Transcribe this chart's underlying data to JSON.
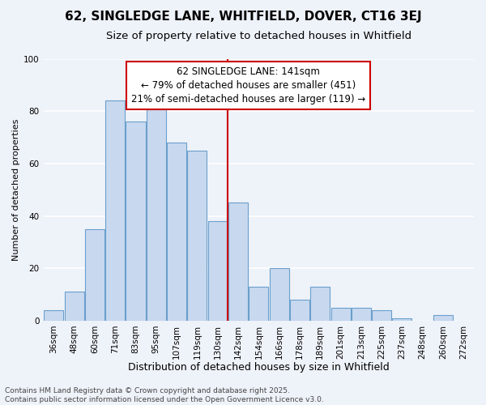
{
  "title": "62, SINGLEDGE LANE, WHITFIELD, DOVER, CT16 3EJ",
  "subtitle": "Size of property relative to detached houses in Whitfield",
  "xlabel": "Distribution of detached houses by size in Whitfield",
  "ylabel": "Number of detached properties",
  "bin_labels": [
    "36sqm",
    "48sqm",
    "60sqm",
    "71sqm",
    "83sqm",
    "95sqm",
    "107sqm",
    "119sqm",
    "130sqm",
    "142sqm",
    "154sqm",
    "166sqm",
    "178sqm",
    "189sqm",
    "201sqm",
    "213sqm",
    "225sqm",
    "237sqm",
    "248sqm",
    "260sqm",
    "272sqm"
  ],
  "bar_heights": [
    4,
    11,
    35,
    84,
    76,
    83,
    68,
    65,
    38,
    45,
    13,
    20,
    8,
    13,
    5,
    5,
    4,
    1,
    0,
    2,
    0
  ],
  "bar_color": "#c8d9ef",
  "bar_edge_color": "#6a9fcc",
  "bg_color": "#eef2f9",
  "grid_color": "#ffffff",
  "vline_x_index": 9,
  "vline_color": "#cc0000",
  "annotation_text": "62 SINGLEDGE LANE: 141sqm\n← 79% of detached houses are smaller (451)\n21% of semi-detached houses are larger (119) →",
  "annotation_box_color": "#ffffff",
  "annotation_box_edge": "#cc0000",
  "ylim": [
    0,
    100
  ],
  "yticks": [
    0,
    20,
    40,
    60,
    80,
    100
  ],
  "footer": "Contains HM Land Registry data © Crown copyright and database right 2025.\nContains public sector information licensed under the Open Government Licence v3.0.",
  "title_fontsize": 11,
  "subtitle_fontsize": 9.5,
  "xlabel_fontsize": 9,
  "ylabel_fontsize": 8,
  "tick_fontsize": 7.5,
  "annotation_fontsize": 8.5,
  "footer_fontsize": 6.5
}
